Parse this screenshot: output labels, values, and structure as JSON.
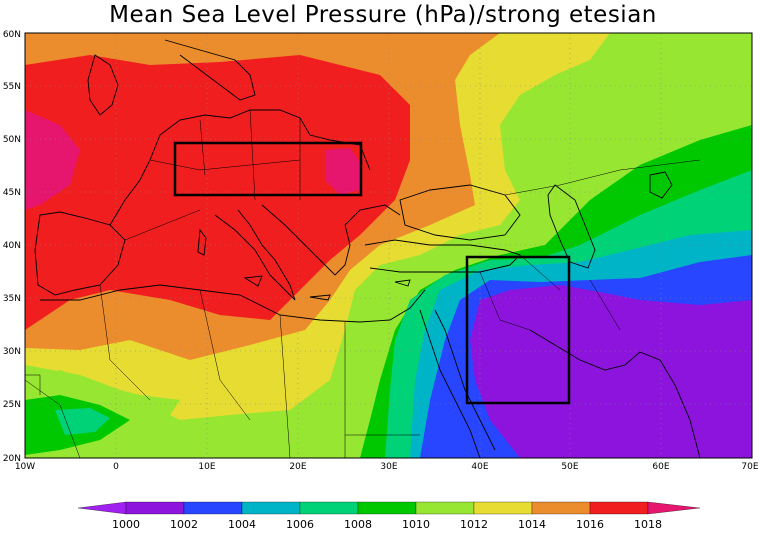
{
  "title": "Mean Sea Level Pressure (hPa)/strong etesian",
  "lat_labels": [
    "60N",
    "55N",
    "50N",
    "45N",
    "40N",
    "35N",
    "30N",
    "25N",
    "20N"
  ],
  "lon_labels": [
    "10W",
    "0",
    "10E",
    "20E",
    "30E",
    "40E",
    "50E",
    "60E",
    "70E"
  ],
  "colorbar": {
    "labels": [
      "1000",
      "1002",
      "1004",
      "1006",
      "1008",
      "1010",
      "1012",
      "1014",
      "1016",
      "1018"
    ],
    "colors": [
      "#a020f0",
      "#1e3cff",
      "#00b4c8",
      "#00dc64",
      "#00c800",
      "#a0e632",
      "#e6dc32",
      "#e68c2d",
      "#f01e1e",
      "#e6166e",
      "#a020f0"
    ]
  },
  "palette": {
    "c1000": "#8c14dc",
    "c1002": "#2846ff",
    "c1004": "#00b4c8",
    "c1006": "#00d278",
    "c1008": "#00c800",
    "c1010": "#96e632",
    "c1012": "#e6dc32",
    "c1014": "#eb8c2d",
    "c1016": "#f01e1e",
    "c1018": "#e6166e"
  }
}
